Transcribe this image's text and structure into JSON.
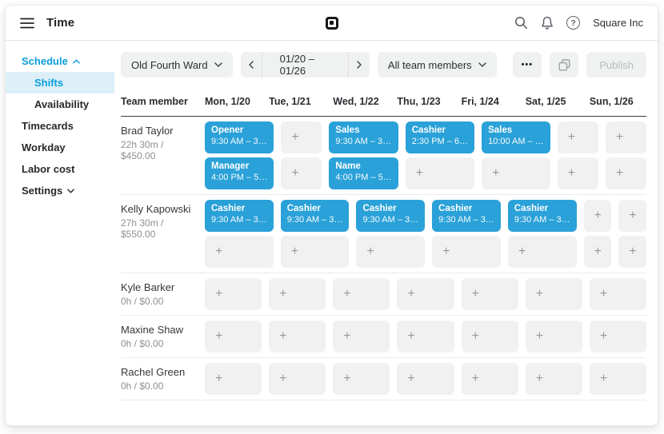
{
  "topbar": {
    "title": "Time",
    "brand": "Square Inc"
  },
  "icons": {
    "more": "•••",
    "plus": "+",
    "help": "?"
  },
  "sidebar": {
    "schedule_label": "Schedule",
    "items": {
      "shifts": "Shifts",
      "availability": "Availability",
      "timecards": "Timecards",
      "workday": "Workday",
      "labor_cost": "Labor cost",
      "settings": "Settings"
    }
  },
  "toolbar": {
    "location": "Old Fourth Ward",
    "date_range": "01/20 – 01/26",
    "team_filter": "All team members",
    "publish": "Publish"
  },
  "schedule": {
    "columns": [
      "Team member",
      "Mon, 1/20",
      "Tue, 1/21",
      "Wed, 1/22",
      "Thu, 1/23",
      "Fri, 1/24",
      "Sat, 1/25",
      "Sun, 1/26"
    ],
    "rows": [
      {
        "name": "Brad Taylor",
        "summary": "22h 30m / $450.00",
        "shift_rows": [
          [
            {
              "title": "Opener",
              "time": "9:30 AM – 3…"
            },
            null,
            {
              "title": "Sales",
              "time": "9:30 AM – 3…"
            },
            {
              "title": "Cashier",
              "time": "2:30 PM – 6…"
            },
            {
              "title": "Sales",
              "time": "10:00 AM – …"
            },
            null,
            null
          ],
          [
            {
              "title": "Manager",
              "time": "4:00 PM – 5…"
            },
            null,
            {
              "title": "Name",
              "time": "4:00 PM – 5…"
            },
            null,
            null,
            null,
            null
          ]
        ]
      },
      {
        "name": "Kelly Kapowski",
        "summary": "27h 30m / $550.00",
        "shift_rows": [
          [
            {
              "title": "Cashier",
              "time": "9:30 AM – 3…"
            },
            {
              "title": "Cashier",
              "time": "9:30 AM – 3…"
            },
            {
              "title": "Cashier",
              "time": "9:30 AM – 3…"
            },
            {
              "title": "Cashier",
              "time": "9:30 AM – 3…"
            },
            {
              "title": "Cashier",
              "time": "9:30 AM – 3…"
            },
            null,
            null
          ],
          [
            null,
            null,
            null,
            null,
            null,
            null,
            null
          ]
        ]
      },
      {
        "name": "Kyle Barker",
        "summary": "0h / $0.00",
        "shift_rows": [
          [
            null,
            null,
            null,
            null,
            null,
            null,
            null
          ]
        ]
      },
      {
        "name": "Maxine Shaw",
        "summary": "0h / $0.00",
        "shift_rows": [
          [
            null,
            null,
            null,
            null,
            null,
            null,
            null
          ]
        ]
      },
      {
        "name": "Rachel Green",
        "summary": "0h / $0.00",
        "shift_rows": [
          [
            null,
            null,
            null,
            null,
            null,
            null,
            null
          ]
        ]
      }
    ]
  },
  "colors": {
    "accent_blue": "#0a9edb",
    "shift_card_blue": "#2aa1d8",
    "selected_item_bg": "#ddf0fa"
  }
}
